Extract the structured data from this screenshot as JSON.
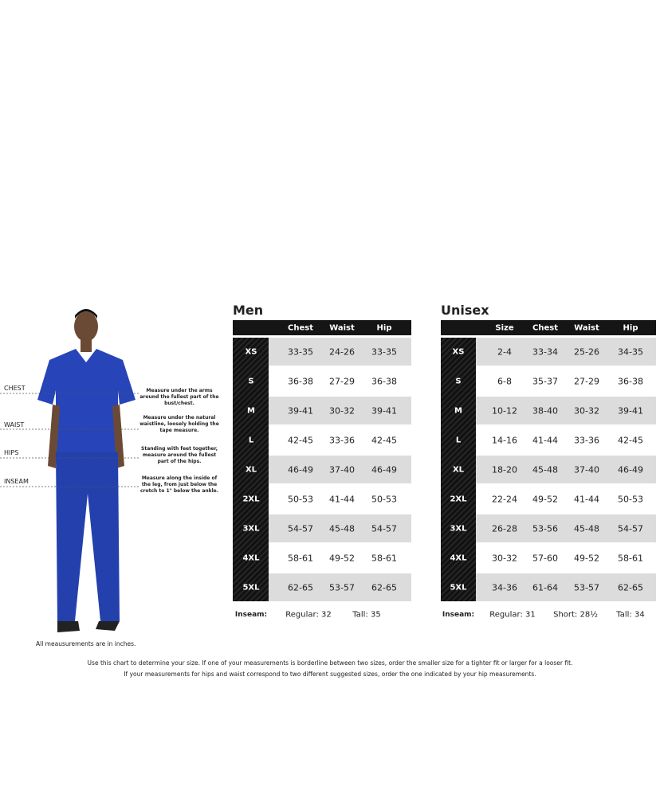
{
  "figure": {
    "labels": [
      "CHEST",
      "WAIST",
      "HIPS",
      "INSEAM"
    ],
    "notes": [
      "Measure under the arms around the fullest part of the bust/chest.",
      "Measure under the natural waistline, loosely holding the tape measure.",
      "Standing with feet together, measure around the fullest part of the hips.",
      "Measure along the inside of the leg, from just below the crotch to 1\" below the ankle."
    ],
    "footnote": "All meausurements are in inches."
  },
  "men": {
    "title": "Men",
    "headers": [
      "Chest",
      "Waist",
      "Hip"
    ],
    "rows": [
      [
        "XS",
        "33-35",
        "24-26",
        "33-35"
      ],
      [
        "S",
        "36-38",
        "27-29",
        "36-38"
      ],
      [
        "M",
        "39-41",
        "30-32",
        "39-41"
      ],
      [
        "L",
        "42-45",
        "33-36",
        "42-45"
      ],
      [
        "XL",
        "46-49",
        "37-40",
        "46-49"
      ],
      [
        "2XL",
        "50-53",
        "41-44",
        "50-53"
      ],
      [
        "3XL",
        "54-57",
        "45-48",
        "54-57"
      ],
      [
        "4XL",
        "58-61",
        "49-52",
        "58-61"
      ],
      [
        "5XL",
        "62-65",
        "53-57",
        "62-65"
      ]
    ],
    "inseam": [
      "Inseam:",
      "Regular: 32",
      "Tall: 35"
    ]
  },
  "unisex": {
    "title": "Unisex",
    "headers": [
      "Size",
      "Chest",
      "Waist",
      "Hip"
    ],
    "rows": [
      [
        "XS",
        "2-4",
        "33-34",
        "25-26",
        "34-35"
      ],
      [
        "S",
        "6-8",
        "35-37",
        "27-29",
        "36-38"
      ],
      [
        "M",
        "10-12",
        "38-40",
        "30-32",
        "39-41"
      ],
      [
        "L",
        "14-16",
        "41-44",
        "33-36",
        "42-45"
      ],
      [
        "XL",
        "18-20",
        "45-48",
        "37-40",
        "46-49"
      ],
      [
        "2XL",
        "22-24",
        "49-52",
        "41-44",
        "50-53"
      ],
      [
        "3XL",
        "26-28",
        "53-56",
        "45-48",
        "54-57"
      ],
      [
        "4XL",
        "30-32",
        "57-60",
        "49-52",
        "58-61"
      ],
      [
        "5XL",
        "34-36",
        "61-64",
        "53-57",
        "62-65"
      ]
    ],
    "inseam": [
      "Inseam:",
      "Regular: 31",
      "Short: 28½",
      "Tall: 34"
    ]
  },
  "instructions": [
    "Use this chart to determine your size. If one of your measurements is borderline between two sizes, order the smaller size for a tighter fit or larger for a looser fit.",
    "If your measurements for hips and waist correspond to two different suggested sizes, order the one indicated by your hip measurements."
  ]
}
